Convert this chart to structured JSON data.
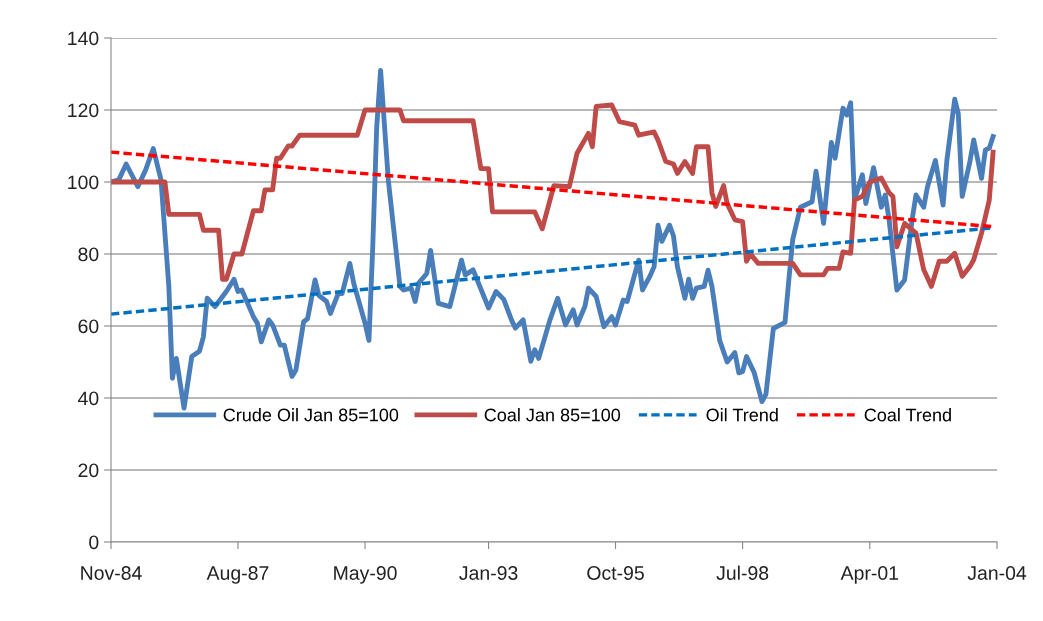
{
  "chart_data": {
    "type": "line",
    "ylim": [
      0,
      140
    ],
    "yticks": [
      0,
      20,
      40,
      60,
      80,
      100,
      120,
      140
    ],
    "xlim": [
      "1984-11",
      "2004-01"
    ],
    "xticks": [
      {
        "value": "1984-11",
        "label": "Nov-84"
      },
      {
        "value": "1987-08",
        "label": "Aug-87"
      },
      {
        "value": "1990-05",
        "label": "May-90"
      },
      {
        "value": "1993-01",
        "label": "Jan-93"
      },
      {
        "value": "1995-10",
        "label": "Oct-95"
      },
      {
        "value": "1998-07",
        "label": "Jul-98"
      },
      {
        "value": "2001-04",
        "label": "Apr-01"
      },
      {
        "value": "2004-01",
        "label": "Jan-04"
      }
    ],
    "grid": "y",
    "legend": "bottom",
    "line_style": "solid",
    "marker": "none",
    "series": [
      {
        "name": "Crude Oil Jan 85=100",
        "color": "#4a7ebb",
        "x": [
          "1984-11",
          "1985-01",
          "1985-03",
          "1985-06",
          "1985-08",
          "1985-10",
          "1985-12",
          "1986-02",
          "1986-03",
          "1986-04",
          "1986-06",
          "1986-08",
          "1986-10",
          "1986-11",
          "1986-12",
          "1987-02",
          "1987-05",
          "1987-07",
          "1987-08",
          "1987-09",
          "1987-12",
          "1988-01",
          "1988-02",
          "1988-04",
          "1988-05",
          "1988-07",
          "1988-08",
          "1988-10",
          "1988-11",
          "1989-01",
          "1989-02",
          "1989-04",
          "1989-05",
          "1989-07",
          "1989-08",
          "1989-10",
          "1989-11",
          "1990-01",
          "1990-02",
          "1990-05",
          "1990-06",
          "1990-07",
          "1990-08",
          "1990-09",
          "1990-11",
          "1991-02",
          "1991-03",
          "1991-05",
          "1991-06",
          "1991-07",
          "1991-09",
          "1991-10",
          "1991-12",
          "1992-03",
          "1992-06",
          "1992-07",
          "1992-09",
          "1993-01",
          "1993-03",
          "1993-05",
          "1993-07",
          "1993-08",
          "1993-10",
          "1993-12",
          "1994-01",
          "1994-02",
          "1994-05",
          "1994-07",
          "1994-09",
          "1994-11",
          "1994-12",
          "1995-02",
          "1995-03",
          "1995-05",
          "1995-07",
          "1995-09",
          "1995-10",
          "1995-12",
          "1996-01",
          "1996-04",
          "1996-05",
          "1996-07",
          "1996-08",
          "1996-09",
          "1996-10",
          "1996-12",
          "1997-01",
          "1997-02",
          "1997-04",
          "1997-05",
          "1997-06",
          "1997-07",
          "1997-09",
          "1997-10",
          "1997-11",
          "1998-01",
          "1998-03",
          "1998-05",
          "1998-06",
          "1998-07",
          "1998-08",
          "1998-10",
          "1998-12",
          "1999-01",
          "1999-03",
          "1999-06",
          "1999-07",
          "1999-08",
          "1999-10",
          "2000-01",
          "2000-02",
          "2000-04",
          "2000-06",
          "2000-07",
          "2000-09",
          "2000-10",
          "2000-11",
          "2000-12",
          "2001-02",
          "2001-03",
          "2001-05",
          "2001-07",
          "2001-08",
          "2001-09",
          "2001-11",
          "2002-01",
          "2002-03",
          "2002-04",
          "2002-06",
          "2002-07",
          "2002-09",
          "2002-11",
          "2002-12",
          "2003-02",
          "2003-03",
          "2003-04",
          "2003-06",
          "2003-07",
          "2003-09",
          "2003-10",
          "2003-11",
          "2003-12"
        ],
        "values": [
          100,
          100.6,
          105,
          98.7,
          103.3,
          109.3,
          100.6,
          71,
          45.5,
          51,
          37.2,
          51.5,
          53,
          57,
          67.7,
          65.4,
          69.6,
          73,
          69.6,
          70,
          62.6,
          60.8,
          55.6,
          61.7,
          60.3,
          54.7,
          54.7,
          46,
          47.8,
          61.2,
          62,
          72.8,
          68.5,
          66.8,
          63.5,
          69,
          69,
          77.4,
          71.8,
          60.8,
          56,
          82,
          115,
          131,
          100.5,
          71,
          70,
          70.5,
          66.8,
          72,
          74.6,
          81,
          66.3,
          65.4,
          78.3,
          74.2,
          75.6,
          65,
          69.6,
          67.4,
          61.7,
          59.4,
          61.7,
          50.2,
          53.4,
          51,
          61.7,
          67.7,
          60.3,
          64.5,
          60.3,
          65.4,
          70.5,
          68.2,
          59.8,
          62.6,
          60.3,
          67.2,
          66.8,
          78.3,
          70,
          74,
          76.5,
          88,
          83.5,
          88,
          85,
          76.5,
          67.7,
          73,
          67.7,
          70.5,
          71,
          75.5,
          71,
          56,
          50,
          52.6,
          47,
          47.3,
          51.5,
          47,
          39,
          41,
          59.3,
          61,
          72.7,
          84,
          93,
          94.5,
          103,
          88.5,
          111,
          106.6,
          120.5,
          118.6,
          122,
          95,
          102,
          94,
          104,
          93,
          96.4,
          89.4,
          70,
          72.8,
          89.4,
          96.4,
          93,
          98.7,
          106,
          93.6,
          106,
          123,
          119,
          96,
          105.7,
          111.7,
          101,
          108.9,
          109.4,
          112.6
        ]
      },
      {
        "name": "Coal Jan 85=100",
        "color": "#be4b48",
        "x": [
          "1984-11",
          "1986-01",
          "1986-02",
          "1986-10",
          "1986-11",
          "1987-03",
          "1987-04",
          "1987-05",
          "1987-07",
          "1987-09",
          "1987-12",
          "1988-02",
          "1988-03",
          "1988-05",
          "1988-06",
          "1988-07",
          "1988-09",
          "1988-10",
          "1988-12",
          "1990-03",
          "1990-05",
          "1991-02",
          "1991-03",
          "1992-09",
          "1992-11",
          "1993-01",
          "1993-02",
          "1994-01",
          "1994-03",
          "1994-06",
          "1994-10",
          "1994-12",
          "1995-03",
          "1995-04",
          "1995-05",
          "1995-09",
          "1995-11",
          "1996-03",
          "1996-04",
          "1996-08",
          "1996-09",
          "1996-11",
          "1997-01",
          "1997-02",
          "1997-04",
          "1997-06",
          "1997-07",
          "1997-10",
          "1997-11",
          "1997-12",
          "1998-02",
          "1998-03",
          "1998-05",
          "1998-07",
          "1998-08",
          "1998-09",
          "1998-11",
          "1999-08",
          "1999-10",
          "2000-04",
          "2000-05",
          "2000-08",
          "2000-09",
          "2000-11",
          "2000-12",
          "2001-02",
          "2001-04",
          "2001-07",
          "2001-09",
          "2001-10",
          "2001-11",
          "2002-01",
          "2002-04",
          "2002-06",
          "2002-08",
          "2002-10",
          "2002-12",
          "2003-02",
          "2003-04",
          "2003-06",
          "2003-07",
          "2003-09",
          "2003-11",
          "2003-12"
        ],
        "values": [
          100,
          100,
          91,
          91,
          86.6,
          86.6,
          73,
          73,
          80,
          80,
          92,
          92,
          97.8,
          97.8,
          106.6,
          106.6,
          110,
          110,
          113,
          113,
          120,
          120,
          117,
          117,
          103.7,
          103.7,
          91.7,
          91.7,
          87,
          99,
          98.7,
          108,
          113.5,
          109.8,
          121,
          121.4,
          116.8,
          115.8,
          113,
          113.9,
          111.6,
          105.7,
          105,
          102.4,
          105.7,
          102.4,
          109.8,
          109.8,
          97,
          93.2,
          99,
          94,
          89.5,
          89,
          78,
          80,
          77.4,
          77.4,
          74.2,
          74.2,
          76,
          76,
          80.6,
          80.2,
          95,
          96,
          100,
          101.1,
          97,
          96,
          82,
          88.5,
          85.8,
          75.6,
          71,
          78,
          78,
          80.2,
          73.8,
          76.5,
          78.4,
          85.8,
          95,
          108.3
        ]
      },
      {
        "name": "Oil Trend",
        "color": "#0070c0",
        "line_style": "dashed",
        "x": [
          "1984-11",
          "2003-12"
        ],
        "values": [
          63.3,
          87.3
        ]
      },
      {
        "name": "Coal Trend",
        "color": "#ff0000",
        "line_style": "dashed",
        "x": [
          "1984-11",
          "2003-12"
        ],
        "values": [
          108.3,
          87.6
        ]
      }
    ]
  }
}
